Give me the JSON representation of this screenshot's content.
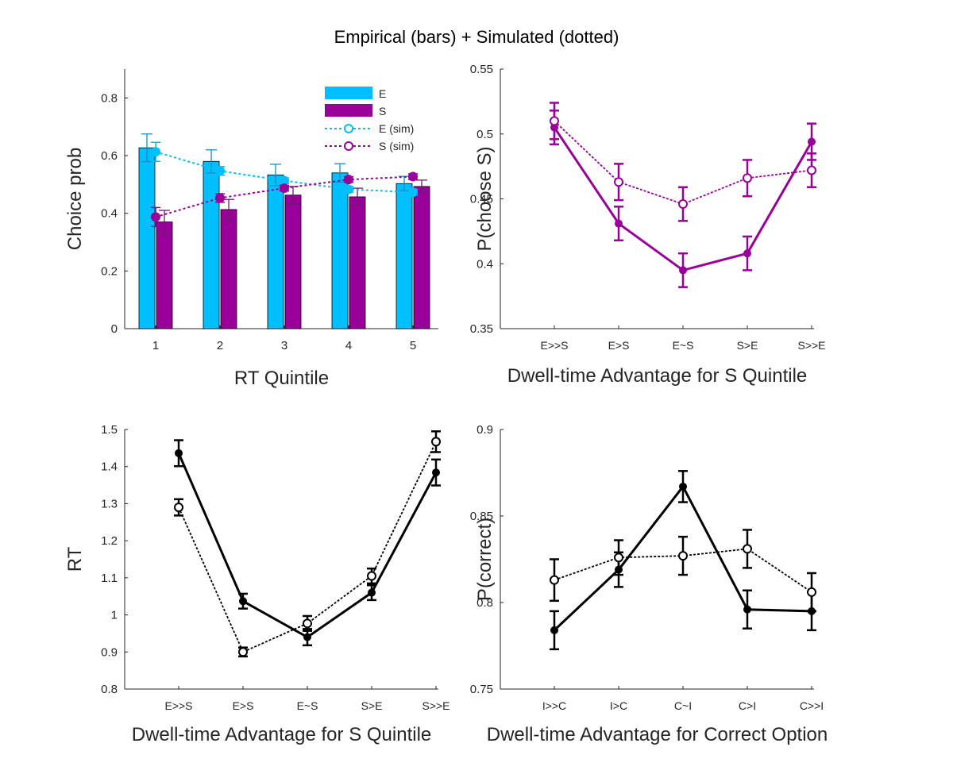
{
  "title": "Empirical (bars) + Simulated (dotted)",
  "colors": {
    "E": "#00bfff",
    "S": "#990099",
    "black": "#000000",
    "axis": "#262626"
  },
  "chart_data": [
    {
      "type": "bar",
      "xlabel": "RT Quintile",
      "ylabel": "Choice prob",
      "categories": [
        "1",
        "2",
        "3",
        "4",
        "5"
      ],
      "ylim": [
        0,
        0.9
      ],
      "yticks": [
        0,
        0.2,
        0.4,
        0.6,
        0.8
      ],
      "ytick_labels": [
        "0",
        "0.2",
        "0.4",
        "0.6",
        "0.8"
      ],
      "series": [
        {
          "name": "E",
          "kind": "bar",
          "color": "#00bfff",
          "values": [
            0.627,
            0.58,
            0.533,
            0.54,
            0.503
          ],
          "errors": [
            0.048,
            0.04,
            0.037,
            0.032,
            0.025
          ]
        },
        {
          "name": "S",
          "kind": "bar",
          "color": "#990099",
          "values": [
            0.37,
            0.413,
            0.463,
            0.457,
            0.493
          ],
          "errors": [
            0.04,
            0.035,
            0.03,
            0.03,
            0.022
          ]
        },
        {
          "name": "E (sim)",
          "kind": "line-dotted-open",
          "color": "#00bfff",
          "values": [
            0.613,
            0.547,
            0.513,
            0.483,
            0.473
          ],
          "errors": [
            0.033,
            0.015,
            0.01,
            0.01,
            0.01
          ]
        },
        {
          "name": "S (sim)",
          "kind": "line-dotted-filled",
          "color": "#990099",
          "values": [
            0.387,
            0.453,
            0.487,
            0.517,
            0.527
          ],
          "errors": [
            0.033,
            0.015,
            0.01,
            0.01,
            0.01
          ]
        }
      ],
      "legend": "top-right"
    },
    {
      "type": "line",
      "xlabel": "Dwell-time Advantage for S Quintile",
      "ylabel": "P(choose S)",
      "categories": [
        "E>>S",
        "E>S",
        "E~S",
        "S>E",
        "S>>E"
      ],
      "ylim": [
        0.35,
        0.55
      ],
      "yticks": [
        0.35,
        0.4,
        0.45,
        0.5,
        0.55
      ],
      "ytick_labels": [
        "0.35",
        "0.4",
        "0.45",
        "0.5",
        "0.55"
      ],
      "series": [
        {
          "kind": "solid-filled",
          "color": "#990099",
          "values": [
            0.505,
            0.431,
            0.395,
            0.408,
            0.494
          ],
          "errors": [
            0.013,
            0.013,
            0.013,
            0.013,
            0.014
          ]
        },
        {
          "kind": "dotted-open",
          "color": "#990099",
          "values": [
            0.51,
            0.463,
            0.446,
            0.466,
            0.472
          ],
          "errors": [
            0.014,
            0.014,
            0.013,
            0.014,
            0.013
          ]
        }
      ]
    },
    {
      "type": "line",
      "xlabel": "Dwell-time Advantage for S Quintile",
      "ylabel": "RT",
      "categories": [
        "E>>S",
        "E>S",
        "E~S",
        "S>E",
        "S>>E"
      ],
      "ylim": [
        0.8,
        1.5
      ],
      "yticks": [
        0.8,
        0.9,
        1.0,
        1.1,
        1.2,
        1.3,
        1.4,
        1.5
      ],
      "ytick_labels": [
        "0.8",
        "0.9",
        "1",
        "1.1",
        "1.2",
        "1.3",
        "1.4",
        "1.5"
      ],
      "series": [
        {
          "kind": "solid-filled",
          "color": "#000000",
          "values": [
            1.436,
            1.037,
            0.94,
            1.06,
            1.384
          ],
          "errors": [
            0.035,
            0.02,
            0.022,
            0.02,
            0.035
          ]
        },
        {
          "kind": "dotted-open",
          "color": "#000000",
          "values": [
            1.29,
            0.9,
            0.977,
            1.105,
            1.467
          ],
          "errors": [
            0.022,
            0.012,
            0.02,
            0.02,
            0.028
          ]
        }
      ]
    },
    {
      "type": "line",
      "xlabel": "Dwell-time Advantage for Correct Option",
      "ylabel": "P(correct)",
      "categories": [
        "I>>C",
        "I>C",
        "C~I",
        "C>I",
        "C>>I"
      ],
      "ylim": [
        0.75,
        0.9
      ],
      "yticks": [
        0.75,
        0.8,
        0.85,
        0.9
      ],
      "ytick_labels": [
        "0.75",
        "0.8",
        "0.85",
        "0.9"
      ],
      "series": [
        {
          "kind": "solid-filled",
          "color": "#000000",
          "values": [
            0.784,
            0.819,
            0.867,
            0.796,
            0.795
          ],
          "errors": [
            0.011,
            0.01,
            0.009,
            0.011,
            0.011
          ]
        },
        {
          "kind": "dotted-open",
          "color": "#000000",
          "values": [
            0.813,
            0.826,
            0.827,
            0.831,
            0.806
          ],
          "errors": [
            0.012,
            0.01,
            0.011,
            0.011,
            0.011
          ]
        }
      ]
    }
  ]
}
